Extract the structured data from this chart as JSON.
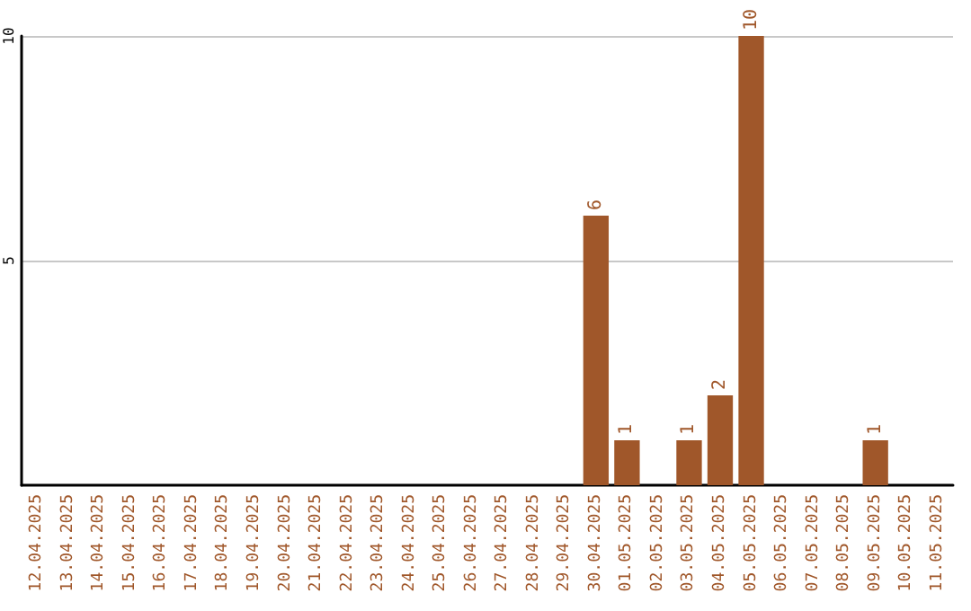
{
  "chart_data": {
    "type": "bar",
    "categories": [
      "12.04.2025",
      "13.04.2025",
      "14.04.2025",
      "15.04.2025",
      "16.04.2025",
      "17.04.2025",
      "18.04.2025",
      "19.04.2025",
      "20.04.2025",
      "21.04.2025",
      "22.04.2025",
      "23.04.2025",
      "24.04.2025",
      "25.04.2025",
      "26.04.2025",
      "27.04.2025",
      "28.04.2025",
      "29.04.2025",
      "30.04.2025",
      "01.05.2025",
      "02.05.2025",
      "03.05.2025",
      "04.05.2025",
      "05.05.2025",
      "06.05.2025",
      "07.05.2025",
      "08.05.2025",
      "09.05.2025",
      "10.05.2025",
      "11.05.2025"
    ],
    "values": [
      0,
      0,
      0,
      0,
      0,
      0,
      0,
      0,
      0,
      0,
      0,
      0,
      0,
      0,
      0,
      0,
      0,
      0,
      6,
      1,
      0,
      1,
      2,
      10,
      0,
      0,
      0,
      1,
      0,
      0
    ],
    "value_labels": [
      null,
      null,
      null,
      null,
      null,
      null,
      null,
      null,
      null,
      null,
      null,
      null,
      null,
      null,
      null,
      null,
      null,
      null,
      "6",
      "1",
      null,
      "1",
      "2",
      "10",
      null,
      null,
      null,
      "1",
      null,
      null
    ],
    "color": "#a0572a",
    "ylim": [
      0,
      10
    ],
    "yticks": [
      5,
      10
    ],
    "grid": "y"
  }
}
